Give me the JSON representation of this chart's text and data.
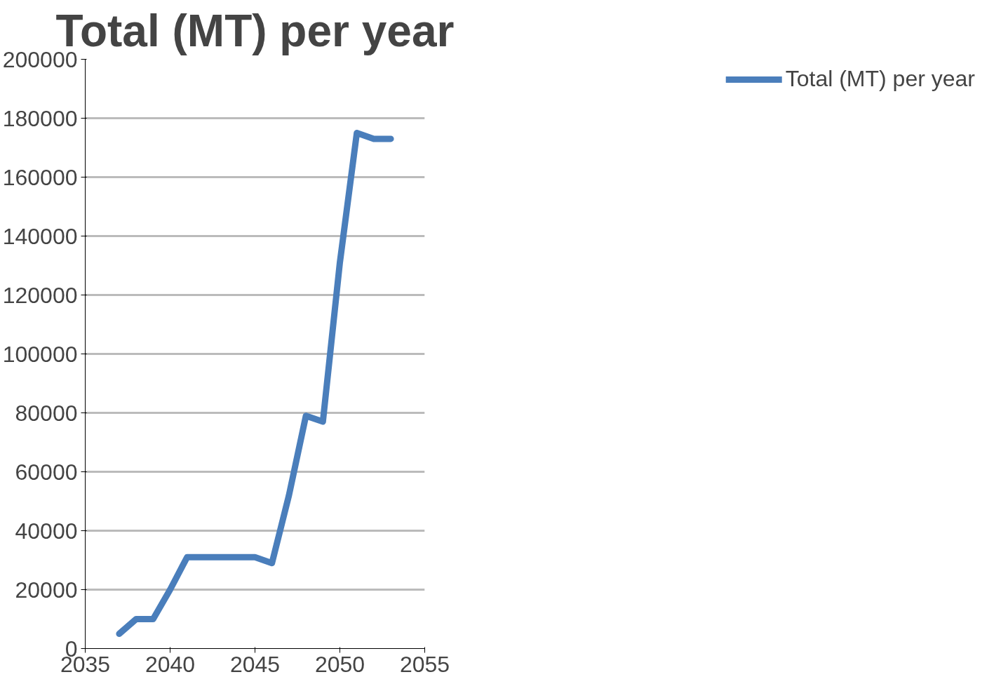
{
  "chart_data": {
    "type": "line",
    "title": "Total (MT) per year",
    "x": [
      2037,
      2038,
      2039,
      2040,
      2041,
      2042,
      2043,
      2044,
      2045,
      2046,
      2047,
      2048,
      2049,
      2050,
      2051,
      2052,
      2053
    ],
    "series": [
      {
        "name": "Total (MT) per year",
        "color": "#4a7ebb",
        "values": [
          5000,
          10000,
          10000,
          20000,
          31000,
          31000,
          31000,
          31000,
          31000,
          29000,
          52000,
          79000,
          77000,
          131000,
          175000,
          173000,
          173000
        ]
      }
    ],
    "xlim": [
      2035,
      2055
    ],
    "xticks": [
      2035,
      2040,
      2045,
      2050,
      2055
    ],
    "ylim": [
      0,
      200000
    ],
    "yticks": [
      0,
      20000,
      40000,
      60000,
      80000,
      100000,
      120000,
      140000,
      160000,
      180000,
      200000
    ],
    "grid": "y",
    "legend": "right",
    "marker": "none",
    "line_style": "solid"
  }
}
